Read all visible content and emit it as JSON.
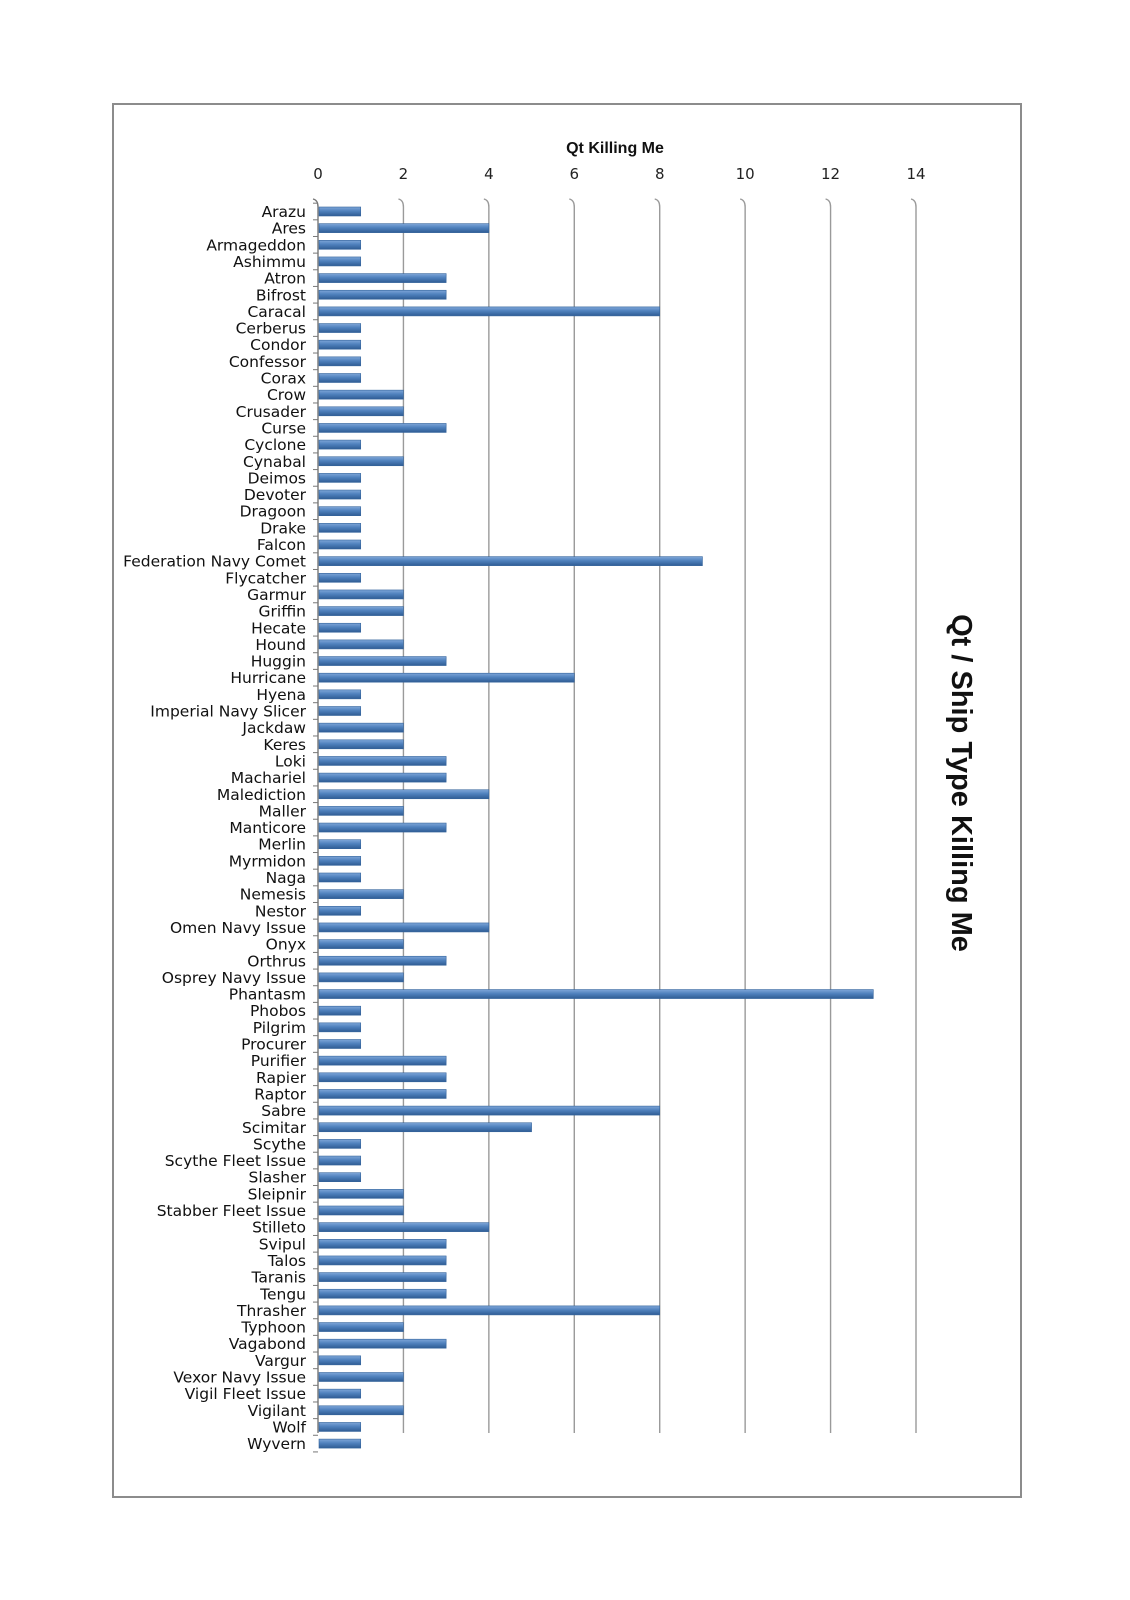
{
  "chart_data": {
    "type": "bar",
    "orientation": "horizontal",
    "title": "Qt / Ship Type Killing Me",
    "xlabel": "Qt Killing Me",
    "ylabel": "",
    "xlim": [
      0,
      14
    ],
    "x_ticks": [
      0,
      2,
      4,
      6,
      8,
      10,
      12,
      14
    ],
    "x_tick_labels": [
      "0",
      "2",
      "4",
      "6",
      "8",
      "10",
      "12",
      "14"
    ],
    "grid": "vertical",
    "legend": "none",
    "bar_color": "#4f81bd",
    "categories": [
      "Arazu",
      "Ares",
      "Armageddon",
      "Ashimmu",
      "Atron",
      "Bifrost",
      "Caracal",
      "Cerberus",
      "Condor",
      "Confessor",
      "Corax",
      "Crow",
      "Crusader",
      "Curse",
      "Cyclone",
      "Cynabal",
      "Deimos",
      "Devoter",
      "Dragoon",
      "Drake",
      "Falcon",
      "Federation Navy Comet",
      "Flycatcher",
      "Garmur",
      "Griffin",
      "Hecate",
      "Hound",
      "Huggin",
      "Hurricane",
      "Hyena",
      "Imperial Navy Slicer",
      "Jackdaw",
      "Keres",
      "Loki",
      "Machariel",
      "Malediction",
      "Maller",
      "Manticore",
      "Merlin",
      "Myrmidon",
      "Naga",
      "Nemesis",
      "Nestor",
      "Omen Navy Issue",
      "Onyx",
      "Orthrus",
      "Osprey Navy Issue",
      "Phantasm",
      "Phobos",
      "Pilgrim",
      "Procurer",
      "Purifier",
      "Rapier",
      "Raptor",
      "Sabre",
      "Scimitar",
      "Scythe",
      "Scythe Fleet Issue",
      "Slasher",
      "Sleipnir",
      "Stabber Fleet Issue",
      "Stilleto",
      "Svipul",
      "Talos",
      "Taranis",
      "Tengu",
      "Thrasher",
      "Typhoon",
      "Vagabond",
      "Vargur",
      "Vexor Navy Issue",
      "Vigil Fleet Issue",
      "Vigilant",
      "Wolf",
      "Wyvern"
    ],
    "values": [
      1,
      4,
      1,
      1,
      3,
      3,
      8,
      1,
      1,
      1,
      1,
      2,
      2,
      3,
      1,
      2,
      1,
      1,
      1,
      1,
      1,
      9,
      1,
      2,
      2,
      1,
      2,
      3,
      6,
      1,
      1,
      2,
      2,
      3,
      3,
      4,
      2,
      3,
      1,
      1,
      1,
      2,
      1,
      4,
      2,
      3,
      2,
      13,
      1,
      1,
      1,
      3,
      3,
      3,
      8,
      5,
      1,
      1,
      1,
      2,
      2,
      4,
      3,
      3,
      3,
      3,
      8,
      2,
      3,
      1,
      2,
      1,
      2,
      1,
      1
    ]
  }
}
